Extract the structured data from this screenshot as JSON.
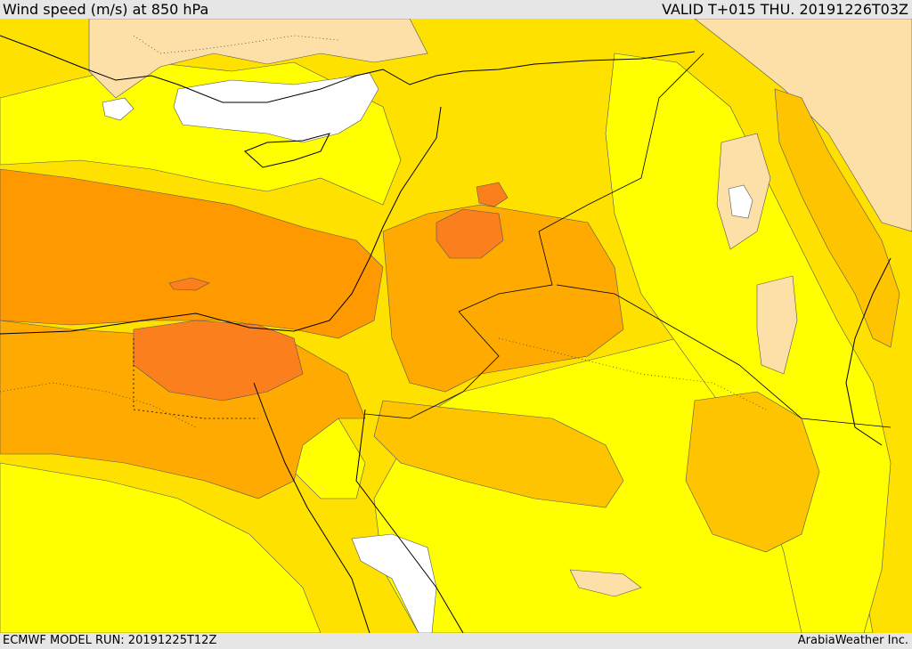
{
  "header": {
    "title": "Wind speed (m/s) at 850 hPa",
    "valid_time": "VALID T+015 THU. 20191226T03Z"
  },
  "footer": {
    "model_run": "ECMWF MODEL RUN: 20191225T12Z",
    "credit": "ArabiaWeather Inc."
  },
  "colors": {
    "background_bars": "#e6e6e6",
    "calm_white": "#ffffff",
    "pale_peach": "#fde0a8",
    "yellow": "#ffff00",
    "yellow_gold": "#ffe100",
    "gold": "#ffc400",
    "light_orange": "#ffaa00",
    "orange": "#ff9900",
    "dark_orange": "#fb7f1c",
    "coastline": "#000000",
    "borders": "#000000"
  }
}
